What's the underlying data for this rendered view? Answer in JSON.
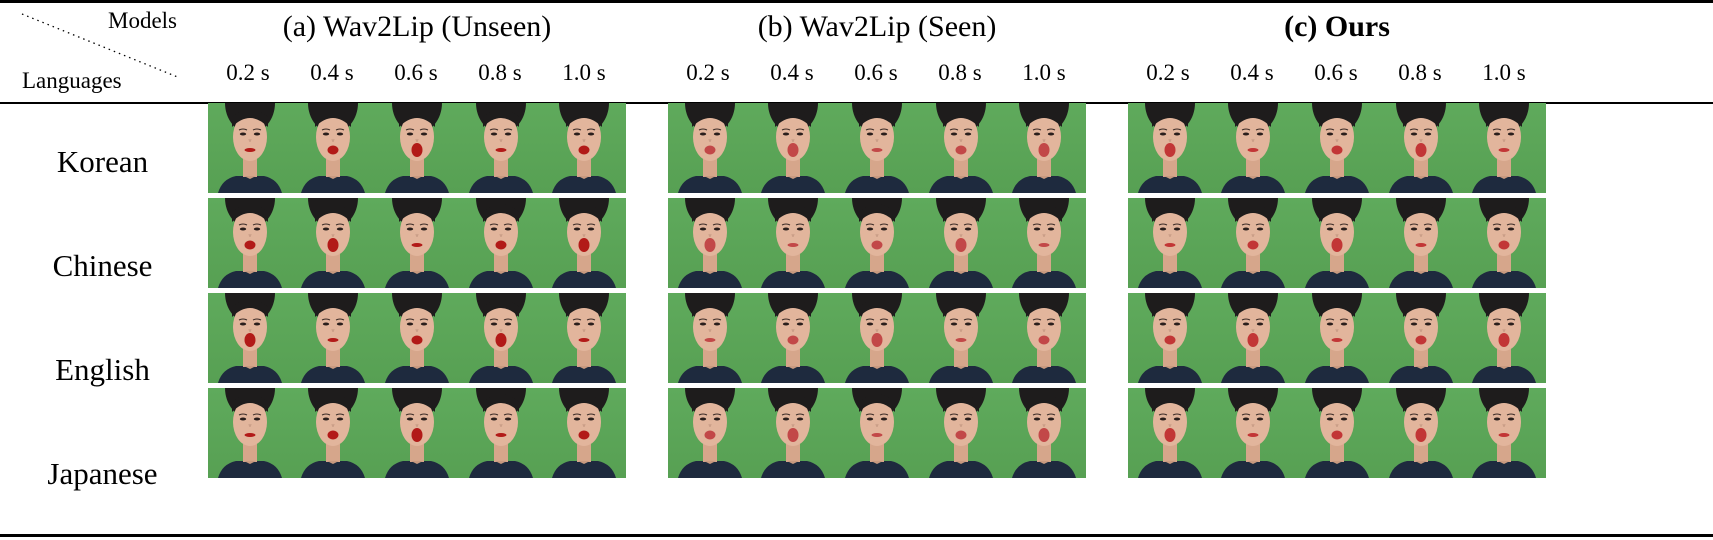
{
  "header": {
    "corner_top": "Models",
    "corner_bottom": "Languages",
    "models": [
      {
        "label": "(a) Wav2Lip (Unseen)",
        "bold": false
      },
      {
        "label": "(b) Wav2Lip (Seen)",
        "bold": false
      },
      {
        "label": "(c) Ours",
        "bold": true
      }
    ],
    "times": [
      "0.2 s",
      "0.4 s",
      "0.6 s",
      "0.8 s",
      "1.0 s"
    ]
  },
  "rows": [
    {
      "language": "Korean"
    },
    {
      "language": "Chinese"
    },
    {
      "language": "English"
    },
    {
      "language": "Japanese"
    }
  ],
  "colors": {
    "background_screen": "#5faa5c",
    "hair": "#1e1c1c",
    "skin": "#e2b59c",
    "shirt": "#1e2a3e",
    "lips_wav2lip_unseen": "#b21a18",
    "lips_wav2lip_seen": "#c24848",
    "lips_ours": "#c23636"
  },
  "figure_description_content": {
    "frame_subject": "talking-head-woman-frame",
    "frames_per_row_per_model": 5
  }
}
